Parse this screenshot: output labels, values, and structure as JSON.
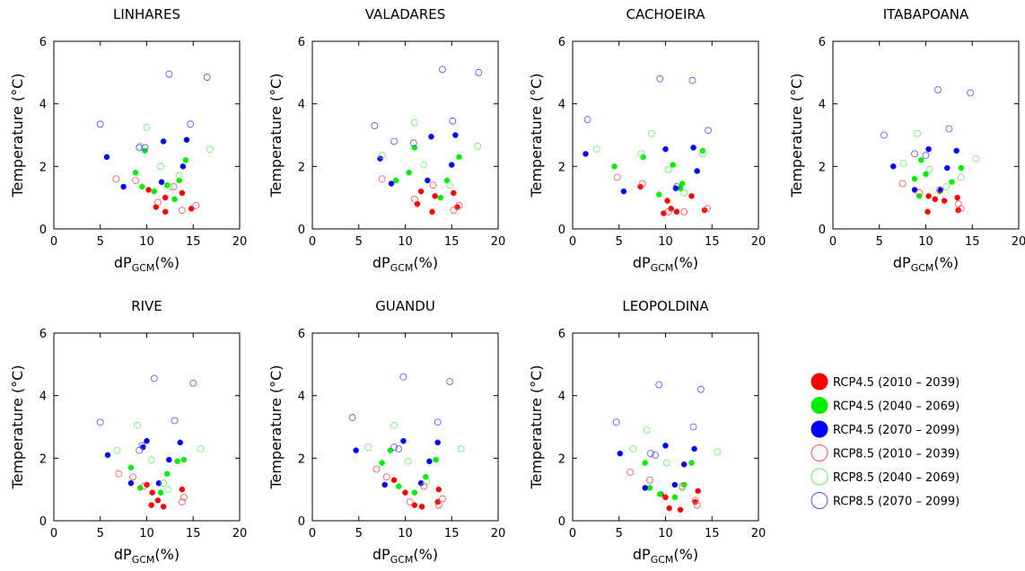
{
  "chart_data": {
    "type": "scatter",
    "xlabel": "dP",
    "xlabel_sub": "GCM",
    "xlabel_suffix": "(%)",
    "ylabel": "Temperature (°C)",
    "xlim": [
      0,
      20
    ],
    "ylim": [
      0,
      6
    ],
    "xticks": [
      "0",
      "5",
      "10",
      "15",
      "20"
    ],
    "yticks": [
      "0",
      "2",
      "4",
      "6"
    ],
    "grid": false,
    "legend_position": "right",
    "series_styles": [
      {
        "name": "RCP4.5 (2010 – 2039)",
        "color": "#ff0000",
        "filled": true
      },
      {
        "name": "RCP4.5 (2040 – 2069)",
        "color": "#00ee00",
        "filled": true
      },
      {
        "name": "RCP4.5 (2070 – 2099)",
        "color": "#0000ff",
        "filled": true
      },
      {
        "name": "RCP8.5 (2010 – 2039)",
        "color": "#ff5050",
        "filled": false
      },
      {
        "name": "RCP8.5 (2040 – 2069)",
        "color": "#66ee66",
        "filled": false
      },
      {
        "name": "RCP8.5 (2070 – 2099)",
        "color": "#5050ff",
        "filled": false
      }
    ],
    "panels": [
      {
        "title": "LINHARES",
        "series": [
          [
            [
              10.2,
              1.25
            ],
            [
              11.0,
              0.7
            ],
            [
              12.0,
              0.55
            ],
            [
              12.0,
              1.0
            ],
            [
              13.8,
              1.15
            ],
            [
              14.8,
              0.65
            ]
          ],
          [
            [
              8.8,
              1.8
            ],
            [
              9.5,
              1.35
            ],
            [
              9.8,
              2.5
            ],
            [
              10.8,
              1.2
            ],
            [
              12.2,
              1.4
            ],
            [
              13.0,
              0.95
            ],
            [
              13.5,
              1.55
            ],
            [
              14.2,
              2.2
            ]
          ],
          [
            [
              5.7,
              2.3
            ],
            [
              7.5,
              1.35
            ],
            [
              11.6,
              1.5
            ],
            [
              11.8,
              2.8
            ],
            [
              13.9,
              2.0
            ],
            [
              14.3,
              2.85
            ]
          ],
          [
            [
              6.7,
              1.6
            ],
            [
              8.8,
              1.55
            ],
            [
              11.2,
              0.85
            ],
            [
              12.9,
              1.35
            ],
            [
              13.8,
              0.6
            ],
            [
              15.3,
              0.75
            ]
          ],
          [
            [
              9.3,
              2.65
            ],
            [
              10.0,
              3.25
            ],
            [
              11.5,
              2.0
            ],
            [
              12.5,
              1.35
            ],
            [
              13.5,
              1.7
            ],
            [
              16.8,
              2.55
            ]
          ],
          [
            [
              5.0,
              3.35
            ],
            [
              9.2,
              2.6
            ],
            [
              9.8,
              2.6
            ],
            [
              12.4,
              4.95
            ],
            [
              14.7,
              3.35
            ],
            [
              16.5,
              4.85
            ]
          ]
        ]
      },
      {
        "title": "VALADARES",
        "series": [
          [
            [
              11.3,
              0.8
            ],
            [
              11.7,
              1.2
            ],
            [
              12.9,
              0.55
            ],
            [
              13.2,
              1.05
            ],
            [
              15.2,
              1.15
            ],
            [
              15.6,
              0.7
            ]
          ],
          [
            [
              9.0,
              1.55
            ],
            [
              10.4,
              1.8
            ],
            [
              11.0,
              2.6
            ],
            [
              13.8,
              1.0
            ],
            [
              14.5,
              1.55
            ],
            [
              15.8,
              2.3
            ]
          ],
          [
            [
              7.3,
              2.25
            ],
            [
              8.5,
              1.45
            ],
            [
              12.4,
              1.55
            ],
            [
              12.8,
              2.95
            ],
            [
              15.0,
              2.05
            ],
            [
              15.4,
              3.0
            ]
          ],
          [
            [
              7.5,
              1.6
            ],
            [
              11.0,
              0.95
            ],
            [
              13.0,
              1.4
            ],
            [
              15.2,
              0.6
            ],
            [
              15.8,
              0.75
            ]
          ],
          [
            [
              7.5,
              2.35
            ],
            [
              11.0,
              3.4
            ],
            [
              12.0,
              2.05
            ],
            [
              14.8,
              1.4
            ],
            [
              17.8,
              2.65
            ]
          ],
          [
            [
              6.7,
              3.3
            ],
            [
              8.8,
              2.8
            ],
            [
              10.9,
              2.75
            ],
            [
              14.0,
              5.1
            ],
            [
              15.1,
              3.45
            ],
            [
              17.9,
              5.0
            ]
          ]
        ]
      },
      {
        "title": "CACHOEIRA",
        "series": [
          [
            [
              7.3,
              1.35
            ],
            [
              9.8,
              0.5
            ],
            [
              10.2,
              0.9
            ],
            [
              10.6,
              0.65
            ],
            [
              11.2,
              0.55
            ],
            [
              12.8,
              1.05
            ],
            [
              14.2,
              0.6
            ]
          ],
          [
            [
              4.5,
              2.0
            ],
            [
              7.6,
              2.3
            ],
            [
              9.3,
              1.1
            ],
            [
              10.8,
              2.05
            ],
            [
              11.6,
              1.3
            ],
            [
              11.8,
              1.45
            ],
            [
              14.0,
              2.5
            ]
          ],
          [
            [
              1.4,
              2.4
            ],
            [
              5.5,
              1.2
            ],
            [
              10.0,
              2.55
            ],
            [
              11.1,
              1.3
            ],
            [
              13.0,
              2.6
            ],
            [
              13.4,
              1.85
            ]
          ],
          [
            [
              4.8,
              1.65
            ],
            [
              7.5,
              1.45
            ],
            [
              10.3,
              0.55
            ],
            [
              12.0,
              0.55
            ],
            [
              14.5,
              0.65
            ]
          ],
          [
            [
              2.6,
              2.55
            ],
            [
              7.4,
              2.4
            ],
            [
              8.5,
              3.05
            ],
            [
              10.3,
              1.9
            ],
            [
              12.0,
              1.15
            ],
            [
              14.0,
              2.4
            ]
          ],
          [
            [
              1.6,
              3.5
            ],
            [
              9.4,
              4.8
            ],
            [
              11.2,
              1.35
            ],
            [
              12.9,
              4.75
            ],
            [
              14.6,
              3.15
            ]
          ]
        ]
      },
      {
        "title": "ITABAPOANA",
        "series": [
          [
            [
              10.2,
              0.55
            ],
            [
              10.3,
              1.05
            ],
            [
              11.0,
              0.95
            ],
            [
              12.0,
              0.9
            ],
            [
              13.4,
              1.0
            ],
            [
              13.5,
              0.6
            ]
          ],
          [
            [
              8.8,
              1.6
            ],
            [
              9.3,
              1.05
            ],
            [
              9.5,
              2.2
            ],
            [
              10.0,
              1.75
            ],
            [
              11.5,
              1.2
            ],
            [
              12.8,
              1.5
            ],
            [
              13.8,
              1.95
            ]
          ],
          [
            [
              6.5,
              2.0
            ],
            [
              8.8,
              1.25
            ],
            [
              10.3,
              2.55
            ],
            [
              11.6,
              1.25
            ],
            [
              12.3,
              1.95
            ],
            [
              13.3,
              2.5
            ]
          ],
          [
            [
              7.5,
              1.45
            ],
            [
              9.3,
              1.15
            ],
            [
              11.5,
              1.25
            ],
            [
              13.5,
              0.8
            ],
            [
              13.8,
              0.65
            ]
          ],
          [
            [
              7.6,
              2.1
            ],
            [
              9.1,
              3.05
            ],
            [
              10.4,
              1.9
            ],
            [
              12.2,
              1.35
            ],
            [
              13.8,
              1.65
            ],
            [
              15.4,
              2.25
            ]
          ],
          [
            [
              5.5,
              3.0
            ],
            [
              8.8,
              2.4
            ],
            [
              10.0,
              2.35
            ],
            [
              11.3,
              4.45
            ],
            [
              12.5,
              3.2
            ],
            [
              14.8,
              4.35
            ]
          ]
        ]
      },
      {
        "title": "RIVE",
        "series": [
          [
            [
              10.0,
              1.15
            ],
            [
              10.5,
              0.5
            ],
            [
              10.6,
              0.9
            ],
            [
              11.2,
              0.65
            ],
            [
              11.8,
              0.45
            ],
            [
              13.8,
              1.0
            ]
          ],
          [
            [
              8.3,
              1.7
            ],
            [
              9.3,
              1.05
            ],
            [
              11.5,
              0.9
            ],
            [
              12.2,
              1.5
            ],
            [
              13.3,
              1.9
            ],
            [
              14.0,
              1.95
            ]
          ],
          [
            [
              5.8,
              2.1
            ],
            [
              8.3,
              1.2
            ],
            [
              9.6,
              2.35
            ],
            [
              10.0,
              2.55
            ],
            [
              11.3,
              1.2
            ],
            [
              12.4,
              1.95
            ],
            [
              13.6,
              2.5
            ]
          ],
          [
            [
              7.0,
              1.5
            ],
            [
              8.5,
              1.4
            ],
            [
              9.7,
              1.1
            ],
            [
              13.8,
              0.6
            ],
            [
              14.0,
              0.75
            ]
          ],
          [
            [
              6.8,
              2.25
            ],
            [
              9.0,
              3.05
            ],
            [
              10.5,
              1.95
            ],
            [
              11.8,
              1.2
            ],
            [
              12.3,
              1.0
            ],
            [
              15.8,
              2.3
            ]
          ],
          [
            [
              5.0,
              3.15
            ],
            [
              9.2,
              2.25
            ],
            [
              9.5,
              2.4
            ],
            [
              10.8,
              4.55
            ],
            [
              13.0,
              3.2
            ],
            [
              15.0,
              4.4
            ]
          ]
        ]
      },
      {
        "title": "GUANDU",
        "series": [
          [
            [
              8.8,
              1.3
            ],
            [
              10.0,
              0.9
            ],
            [
              11.0,
              0.5
            ],
            [
              11.8,
              0.45
            ],
            [
              13.5,
              0.6
            ],
            [
              13.6,
              1.0
            ]
          ],
          [
            [
              7.5,
              1.85
            ],
            [
              8.4,
              2.25
            ],
            [
              9.3,
              1.1
            ],
            [
              11.0,
              0.9
            ],
            [
              12.2,
              1.4
            ],
            [
              13.3,
              1.95
            ]
          ],
          [
            [
              4.7,
              2.25
            ],
            [
              7.8,
              1.15
            ],
            [
              9.8,
              2.55
            ],
            [
              11.7,
              1.2
            ],
            [
              12.6,
              1.9
            ],
            [
              13.5,
              2.5
            ]
          ],
          [
            [
              6.9,
              1.65
            ],
            [
              8.0,
              1.4
            ],
            [
              10.5,
              0.6
            ],
            [
              12.0,
              1.1
            ],
            [
              13.6,
              0.5
            ],
            [
              14.0,
              0.7
            ]
          ],
          [
            [
              6.0,
              2.35
            ],
            [
              8.8,
              3.05
            ],
            [
              10.3,
              1.9
            ],
            [
              12.3,
              1.25
            ],
            [
              16.0,
              2.3
            ]
          ],
          [
            [
              4.3,
              3.3
            ],
            [
              8.8,
              2.35
            ],
            [
              9.3,
              2.3
            ],
            [
              9.8,
              4.6
            ],
            [
              13.5,
              3.15
            ],
            [
              14.8,
              4.45
            ]
          ]
        ]
      },
      {
        "title": "LEOPOLDINA",
        "series": [
          [
            [
              9.5,
              0.85
            ],
            [
              10.0,
              0.75
            ],
            [
              10.4,
              0.4
            ],
            [
              11.6,
              0.35
            ],
            [
              13.2,
              0.6
            ],
            [
              13.5,
              0.95
            ]
          ],
          [
            [
              7.8,
              1.85
            ],
            [
              8.3,
              1.05
            ],
            [
              9.4,
              0.85
            ],
            [
              11.0,
              0.75
            ],
            [
              12.0,
              1.15
            ],
            [
              12.8,
              1.85
            ]
          ],
          [
            [
              5.1,
              2.15
            ],
            [
              7.8,
              1.05
            ],
            [
              10.0,
              2.4
            ],
            [
              11.0,
              1.15
            ],
            [
              12.0,
              1.8
            ],
            [
              13.1,
              2.3
            ]
          ],
          [
            [
              6.2,
              1.55
            ],
            [
              8.3,
              1.3
            ],
            [
              11.8,
              1.1
            ],
            [
              13.2,
              0.65
            ],
            [
              13.4,
              0.5
            ]
          ],
          [
            [
              6.5,
              2.3
            ],
            [
              8.0,
              2.9
            ],
            [
              10.1,
              1.85
            ],
            [
              11.8,
              1.05
            ],
            [
              15.6,
              2.2
            ]
          ],
          [
            [
              4.7,
              3.15
            ],
            [
              8.4,
              2.15
            ],
            [
              8.9,
              2.1
            ],
            [
              9.3,
              4.35
            ],
            [
              13.0,
              3.0
            ],
            [
              13.8,
              4.2
            ]
          ]
        ]
      }
    ]
  }
}
